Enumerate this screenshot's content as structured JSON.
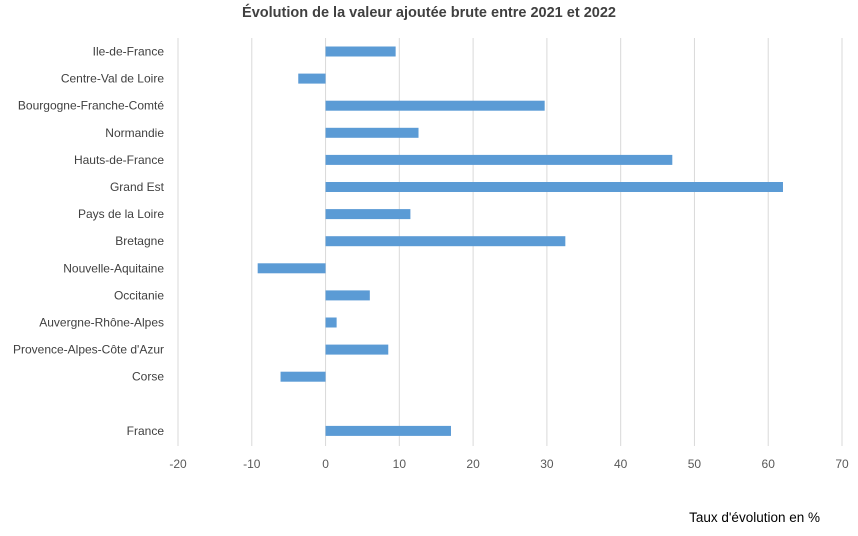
{
  "chart_data": {
    "type": "bar",
    "orientation": "horizontal",
    "title": "Évolution de la valeur ajoutée brute entre 2021 et 2022",
    "xlabel": "Taux d'évolution en %",
    "ylabel": "",
    "xlim": [
      -20,
      70
    ],
    "xticks": [
      -20,
      -10,
      0,
      10,
      20,
      30,
      40,
      50,
      60,
      70
    ],
    "grid": "vertical",
    "bar_color": "#5b9bd5",
    "categories": [
      "Ile-de-France",
      "Centre-Val de Loire",
      "Bourgogne-Franche-Comté",
      "Normandie",
      "Hauts-de-France",
      "Grand Est",
      "Pays de la Loire",
      "Bretagne",
      "Nouvelle-Aquitaine",
      "Occitanie",
      "Auvergne-Rhône-Alpes",
      "Provence-Alpes-Côte d'Azur",
      "Corse",
      "",
      "France"
    ],
    "values": [
      9.5,
      -3.7,
      29.7,
      12.6,
      47.0,
      62.0,
      11.5,
      32.5,
      -9.2,
      6.0,
      1.5,
      8.5,
      -6.1,
      null,
      17.0
    ]
  }
}
